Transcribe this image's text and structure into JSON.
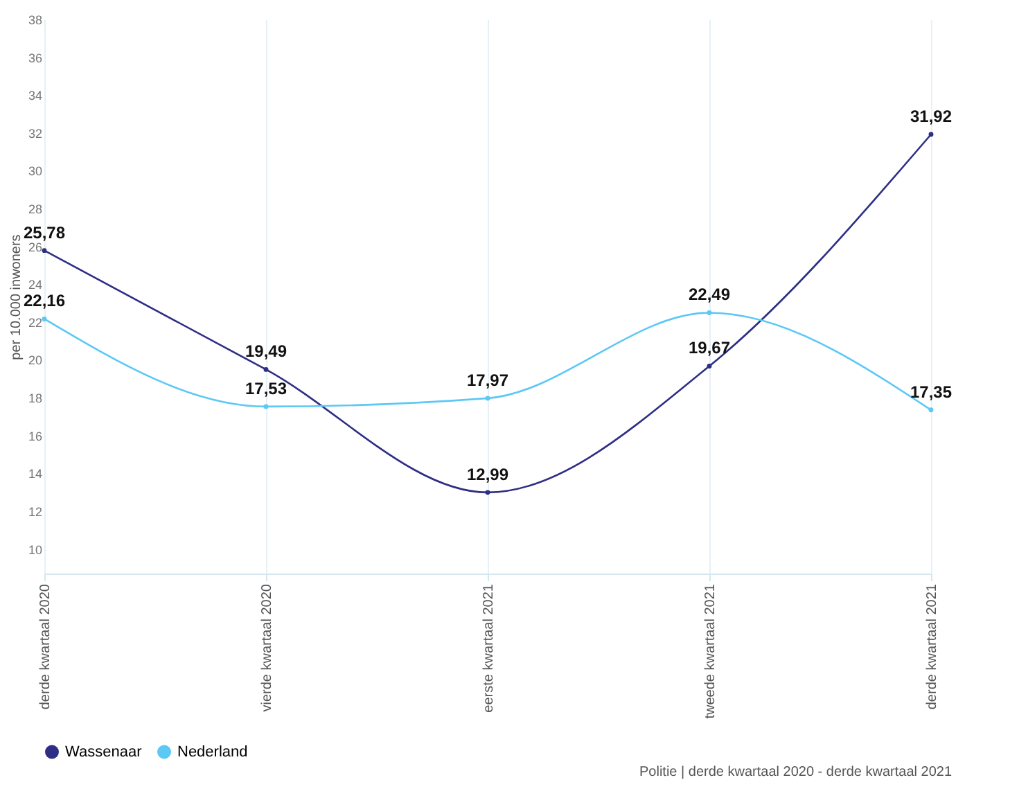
{
  "chart_data": {
    "type": "line",
    "ylabel": "per 10.000 inwoners",
    "categories": [
      "derde kwartaal 2020",
      "vierde kwartaal 2020",
      "eerste kwartaal 2021",
      "tweede kwartaal 2021",
      "derde kwartaal 2021"
    ],
    "series": [
      {
        "name": "Wassenaar",
        "color": "#2e2e85",
        "values": [
          25.78,
          19.49,
          12.99,
          19.67,
          31.92
        ],
        "value_labels": [
          "25,78",
          "19,49",
          "12,99",
          "19,67",
          "31,92"
        ]
      },
      {
        "name": "Nederland",
        "color": "#5bc8f5",
        "values": [
          22.16,
          17.53,
          17.97,
          22.49,
          17.35
        ],
        "value_labels": [
          "22,16",
          "17,53",
          "17,97",
          "22,49",
          "17,35"
        ]
      }
    ],
    "ylim": [
      8.7,
      38
    ],
    "yticks": [
      10,
      12,
      14,
      16,
      18,
      20,
      22,
      24,
      26,
      28,
      30,
      32,
      34,
      36,
      38
    ],
    "grid": "x",
    "legend": "bottom",
    "marker": "circle",
    "annotations": [
      "Politie | derde kwartaal 2020 - derde kwartaal 2021"
    ]
  }
}
